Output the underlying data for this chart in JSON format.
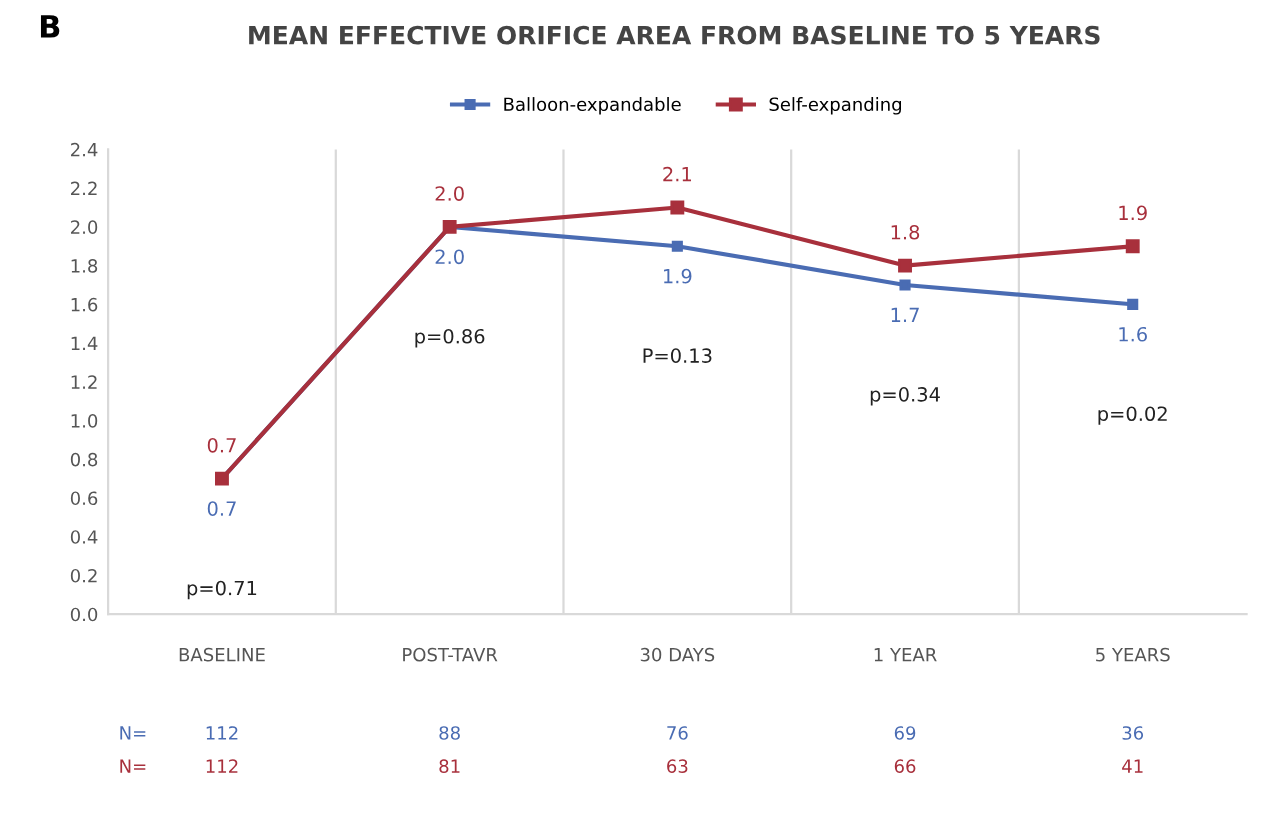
{
  "chart_data": {
    "type": "line",
    "title": "MEAN EFFECTIVE ORIFICE AREA FROM BASELINE TO 5 YEARS",
    "categories": [
      "BASELINE",
      "POST-TAVR",
      "30 DAYS",
      "1 YEAR",
      "5 YEARS"
    ],
    "series": [
      {
        "name": "Balloon-expandable",
        "color": "#4a6cb3",
        "values": [
          0.7,
          2.0,
          1.9,
          1.7,
          1.6
        ],
        "value_labels": [
          "0.7",
          "2.0",
          "1.9",
          "1.7",
          "1.6"
        ]
      },
      {
        "name": "Self-expanding",
        "color": "#a8303c",
        "values": [
          0.7,
          2.0,
          2.1,
          1.8,
          1.9
        ],
        "value_labels": [
          "0.7",
          "2.0",
          "2.1",
          "1.8",
          "1.9"
        ]
      }
    ],
    "ylim": [
      0,
      2.4
    ],
    "yticks": [
      "0.0",
      0.2,
      0.4,
      0.6,
      0.8,
      "1.0",
      1.2,
      1.4,
      1.6,
      1.8,
      "2.0",
      2.2,
      2.4
    ],
    "marker": "square",
    "line_style": "solid",
    "grid": "x",
    "legend": "top",
    "annotations": [
      "B",
      "p=0.71",
      "p=0.86",
      "P=0.13",
      "p=0.34",
      "p=0.02",
      "N=",
      "112",
      "88",
      "76",
      "69",
      "36",
      "N=",
      "112",
      "81",
      "63",
      "66",
      "41"
    ]
  }
}
